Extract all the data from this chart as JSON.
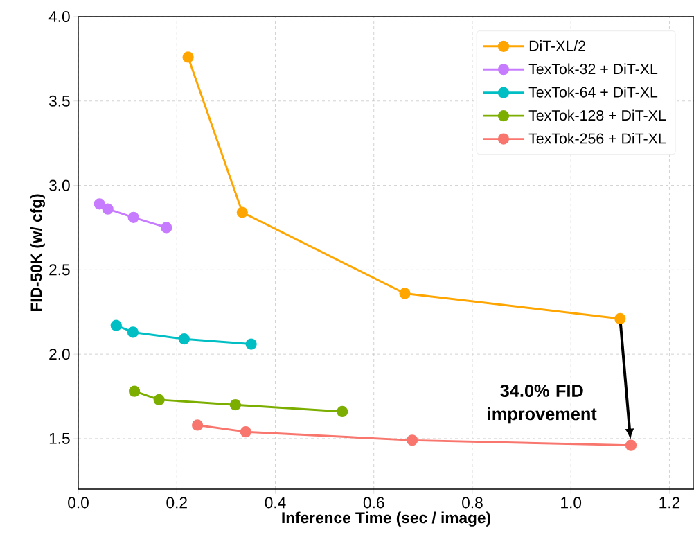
{
  "chart_data": {
    "type": "line",
    "xlabel": "Inference Time (sec / image)",
    "ylabel": "FID-50K (w/ cfg)",
    "xlim": [
      0,
      1.25
    ],
    "ylim": [
      1.2,
      4.0
    ],
    "xticks": [
      {
        "value": 0,
        "label": "0.0"
      },
      0.2,
      0.4,
      0.6,
      0.8,
      {
        "value": 1,
        "label": "1.0"
      },
      1.2
    ],
    "yticks": [
      1.5,
      {
        "value": 2,
        "label": "2.0"
      },
      2.5,
      {
        "value": 3,
        "label": "3.0"
      },
      3.5,
      {
        "value": 4,
        "label": "4.0"
      }
    ],
    "grid": true,
    "legend": "top right",
    "marker": "circle",
    "line_style": "solid",
    "series": [
      {
        "name": "DiT-XL/2",
        "color": "#ffa500",
        "x": [
          0.223,
          0.333,
          0.663,
          1.1
        ],
        "values": [
          3.76,
          2.84,
          2.36,
          2.21
        ]
      },
      {
        "name": "TexTok-32 + DiT-XL",
        "color": "#c77cff",
        "x": [
          0.043,
          0.06,
          0.112,
          0.179
        ],
        "values": [
          2.89,
          2.86,
          2.81,
          2.75
        ]
      },
      {
        "name": "TexTok-64 + DiT-XL",
        "color": "#00bfc4",
        "x": [
          0.077,
          0.111,
          0.215,
          0.351
        ],
        "values": [
          2.17,
          2.13,
          2.09,
          2.06
        ]
      },
      {
        "name": "TexTok-128 + DiT-XL",
        "color": "#7cae00",
        "x": [
          0.114,
          0.164,
          0.319,
          0.536
        ],
        "values": [
          1.78,
          1.73,
          1.7,
          1.66
        ]
      },
      {
        "name": "TexTok-256 + DiT-XL",
        "color": "#f8766d",
        "x": [
          0.242,
          0.34,
          0.678,
          1.122
        ],
        "values": [
          1.58,
          1.54,
          1.49,
          1.46
        ]
      }
    ],
    "annotations": [
      {
        "text": "34.0% FID improvement",
        "x": 1.122,
        "y": 1.46
      }
    ]
  }
}
